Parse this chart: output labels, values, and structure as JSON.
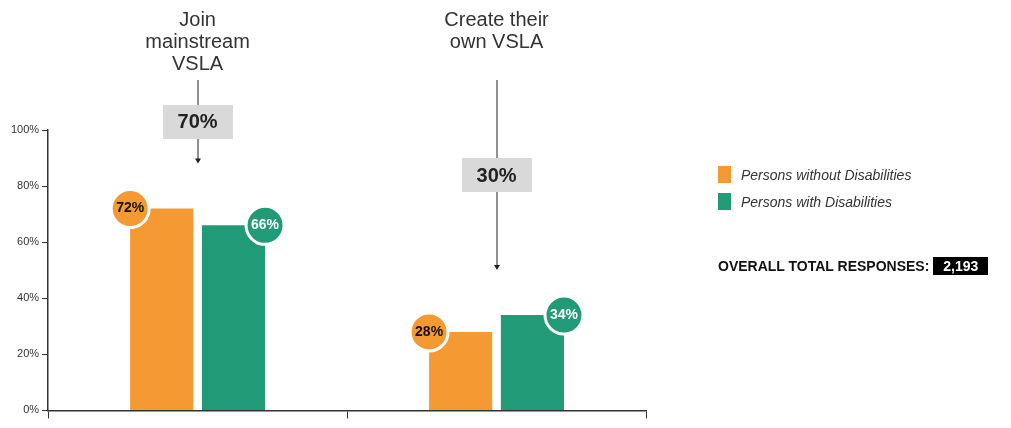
{
  "chart_data": {
    "type": "bar",
    "categories": [
      "Join mainstream VSLA",
      "Create their own VSLA"
    ],
    "series": [
      {
        "name": "Persons without Disabilities",
        "color": "#f59a32",
        "values": [
          72,
          28
        ],
        "value_labels": [
          "72%",
          "28%"
        ]
      },
      {
        "name": "Persons with Disabilities",
        "color": "#219b77",
        "values": [
          66,
          34
        ],
        "value_labels": [
          "66%",
          "34%"
        ]
      }
    ],
    "ylim": [
      0,
      100
    ],
    "yticks": [
      {
        "value": 0,
        "label": "0%"
      },
      {
        "value": 20,
        "label": "20%"
      },
      {
        "value": 40,
        "label": "40%"
      },
      {
        "value": 60,
        "label": "60%"
      },
      {
        "value": 80,
        "label": "80%"
      },
      {
        "value": 100,
        "label": "100%"
      }
    ],
    "annotations": [
      "70%",
      "30%",
      "OVERALL TOTAL RESPONSES: 2,193"
    ],
    "legend": "right",
    "grid": false
  }
}
